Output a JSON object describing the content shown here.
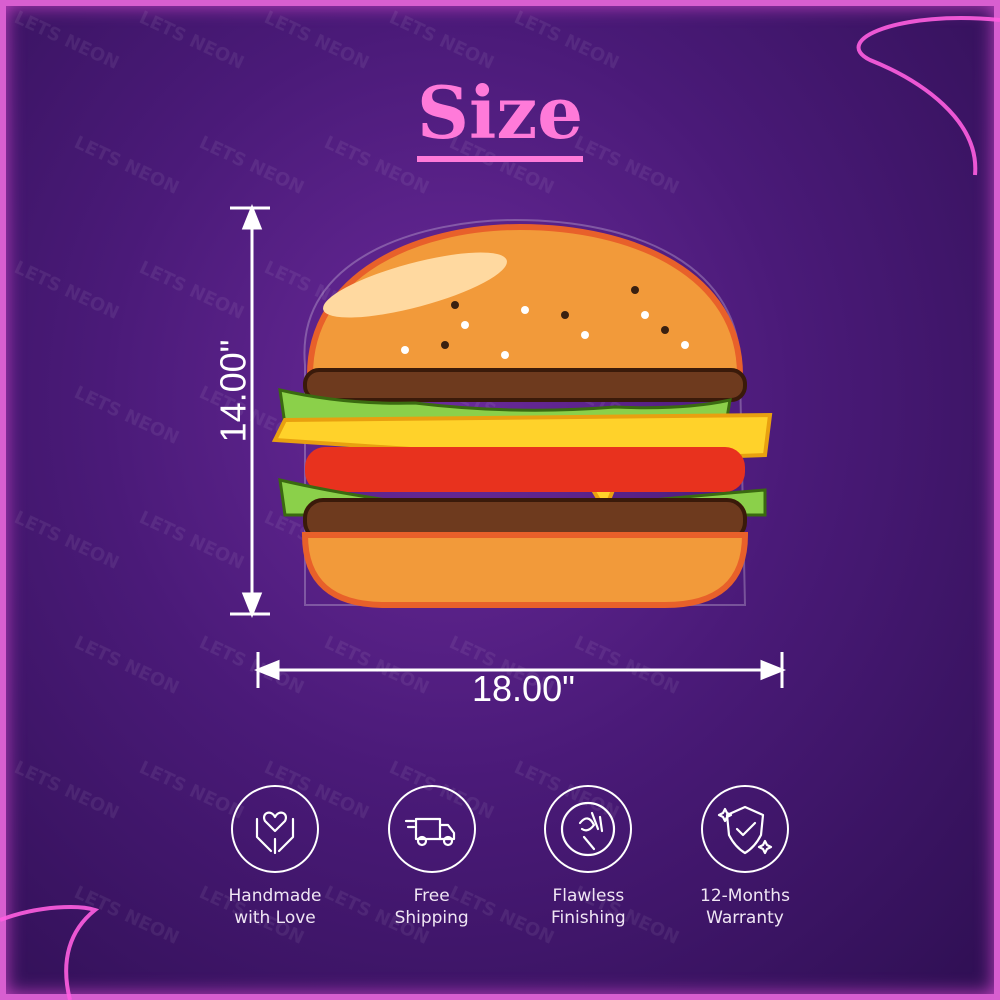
{
  "watermark": "LETS NEON",
  "title": "Size",
  "dimensions": {
    "height": "14.00\"",
    "width": "18.00\""
  },
  "features": [
    {
      "icon": "hands-heart-icon",
      "line1": "Handmade",
      "line2": "with Love"
    },
    {
      "icon": "delivery-truck-icon",
      "line1": "Free",
      "line2": "Shipping"
    },
    {
      "icon": "ok-hand-icon",
      "line1": "Flawless",
      "line2": "Finishing"
    },
    {
      "icon": "shield-check-icon",
      "line1": "12-Months",
      "line2": "Warranty"
    }
  ],
  "colors": {
    "accent": "#ff7ad9",
    "background": "#4a1a78",
    "frame": "#d85fd0"
  }
}
